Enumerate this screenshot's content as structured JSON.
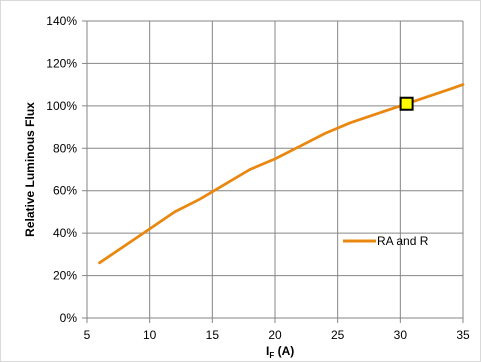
{
  "chart_data": {
    "type": "line",
    "xlabel_main": "I",
    "xlabel_sub": "F",
    "xlabel_unit": " (A)",
    "ylabel": "Relative Luminous Flux",
    "xlim": [
      5,
      35
    ],
    "ylim": [
      0,
      140
    ],
    "x_ticks": [
      5,
      10,
      15,
      20,
      25,
      30,
      35
    ],
    "y_ticks": [
      0,
      20,
      40,
      60,
      80,
      100,
      120,
      140
    ],
    "y_tick_labels": [
      "0%",
      "20%",
      "40%",
      "60%",
      "80%",
      "100%",
      "120%",
      "140%"
    ],
    "grid": true,
    "legend_position": "bottom-right",
    "series": [
      {
        "name": "RA and R",
        "color": "#E9870F",
        "x": [
          6,
          8,
          10,
          12,
          14,
          16,
          18,
          20,
          22,
          24,
          26,
          28,
          30,
          32,
          34,
          35
        ],
        "y": [
          26,
          34,
          42,
          50,
          56,
          63,
          70,
          75,
          81,
          87,
          92,
          96,
          100,
          104,
          108,
          110
        ]
      }
    ],
    "marker": {
      "x": 30.5,
      "y": 101,
      "fill": "#FFFF00",
      "stroke": "#000000"
    }
  }
}
